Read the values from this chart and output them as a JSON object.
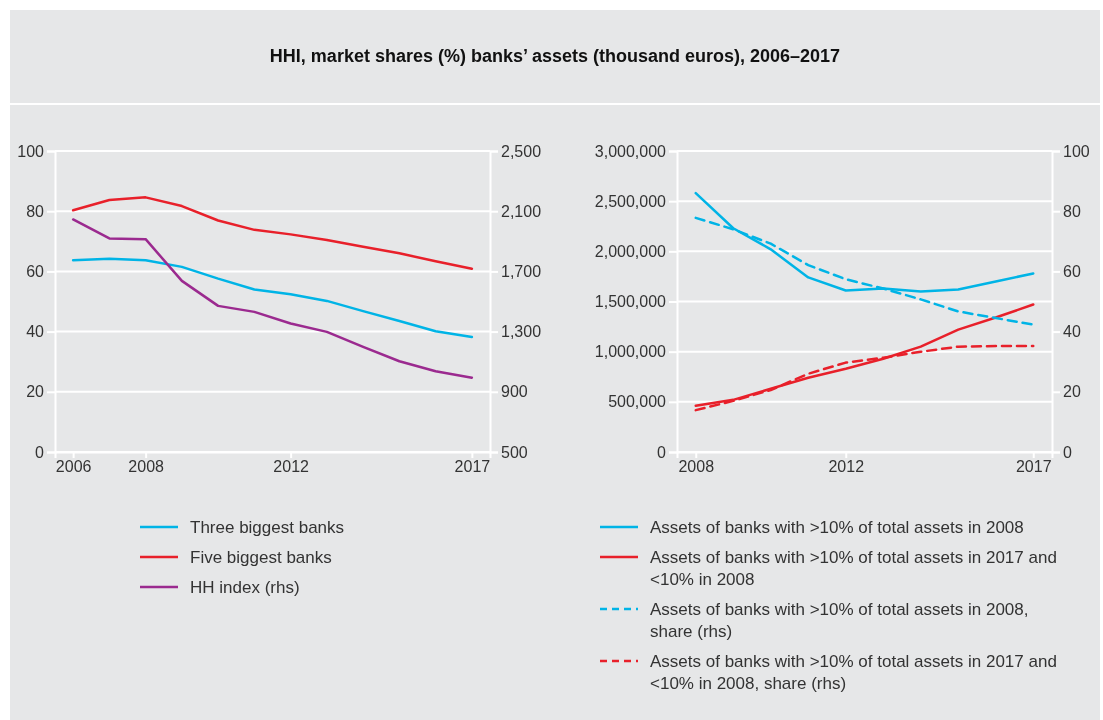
{
  "chart_data": [
    {
      "type": "line",
      "title": "HHI, market shares (%) banks’ assets (thousand euros), 2006–2017",
      "x": [
        2006,
        2007,
        2008,
        2009,
        2010,
        2011,
        2012,
        2013,
        2014,
        2015,
        2016,
        2017
      ],
      "xlim": [
        2005.5,
        2017.5
      ],
      "xticks": [
        2006,
        2008,
        2012,
        2017
      ],
      "ylim": [
        0,
        100
      ],
      "yticks": [
        0,
        20,
        40,
        60,
        80,
        100
      ],
      "y2lim": [
        500,
        2500
      ],
      "y2ticks": [
        {
          "value": 500,
          "label": "500"
        },
        {
          "value": 900,
          "label": "900"
        },
        {
          "value": 1300,
          "label": "1,300"
        },
        {
          "value": 1700,
          "label": "1,700"
        },
        {
          "value": 2100,
          "label": "2,100"
        },
        {
          "value": 2500,
          "label": "2,500"
        }
      ],
      "grid": "y",
      "legend": "bottom",
      "line_style": "solid",
      "series": [
        {
          "name": "Three biggest banks",
          "color": "#00b4e6",
          "values": [
            63.7,
            64.2,
            63.7,
            61.5,
            57.6,
            54.0,
            52.4,
            50.2,
            46.8,
            43.5,
            40.1,
            38.2
          ]
        },
        {
          "name": "Five biggest banks",
          "color": "#e8202a",
          "values": [
            80.3,
            83.7,
            84.6,
            81.7,
            76.9,
            73.8,
            72.3,
            70.4,
            68.2,
            66.0,
            63.4,
            60.9
          ]
        },
        {
          "name": "HH index (rhs)",
          "color": "#9b2a8f",
          "axis": "y2",
          "values": [
            2045,
            1919,
            1914,
            1637,
            1471,
            1431,
            1354,
            1298,
            1198,
            1103,
            1037,
            994
          ]
        }
      ]
    },
    {
      "type": "line",
      "x": [
        2008,
        2009,
        2010,
        2011,
        2012,
        2013,
        2014,
        2015,
        2016,
        2017
      ],
      "xlim": [
        2007.5,
        2017.5
      ],
      "xticks": [
        2008,
        2012,
        2017
      ],
      "ylim": [
        0,
        3000000
      ],
      "yticks": [
        {
          "value": 0,
          "label": "0"
        },
        {
          "value": 500000,
          "label": "500,000"
        },
        {
          "value": 1000000,
          "label": "1,000,000"
        },
        {
          "value": 1500000,
          "label": "1,500,000"
        },
        {
          "value": 2000000,
          "label": "2,000,000"
        },
        {
          "value": 2500000,
          "label": "2,500,000"
        },
        {
          "value": 3000000,
          "label": "3,000,000"
        }
      ],
      "y2lim": [
        0,
        100
      ],
      "y2ticks": [
        0,
        20,
        40,
        60,
        80,
        100
      ],
      "grid": "y",
      "legend": "bottom",
      "series": [
        {
          "name": "Assets of banks with >10% of total assets in 2008",
          "color": "#00b4e6",
          "line_style": "solid",
          "values": [
            2580000,
            2230000,
            2020000,
            1740000,
            1610000,
            1630000,
            1600000,
            1620000,
            1700000,
            1780000
          ]
        },
        {
          "name": "Assets of banks with >10% of total assets in 2017 and <10% in 2008",
          "color": "#e8202a",
          "line_style": "solid",
          "values": [
            460000,
            520000,
            630000,
            740000,
            830000,
            930000,
            1050000,
            1220000,
            1340000,
            1470000
          ]
        },
        {
          "name": "Assets of banks with >10% of total assets in 2008, share (rhs)",
          "color": "#00b4e6",
          "line_style": "dashed",
          "axis": "y2",
          "values": [
            77.8,
            74.0,
            69.2,
            62.1,
            57.4,
            54.3,
            50.7,
            46.7,
            44.5,
            42.3
          ]
        },
        {
          "name": "Assets of banks with >10% of total assets in 2017 and <10% in 2008, share (rhs)",
          "color": "#e8202a",
          "line_style": "dashed",
          "axis": "y2",
          "values": [
            13.9,
            17.0,
            20.6,
            26.0,
            29.7,
            31.3,
            33.3,
            35.0,
            35.2,
            35.2
          ]
        }
      ]
    }
  ]
}
